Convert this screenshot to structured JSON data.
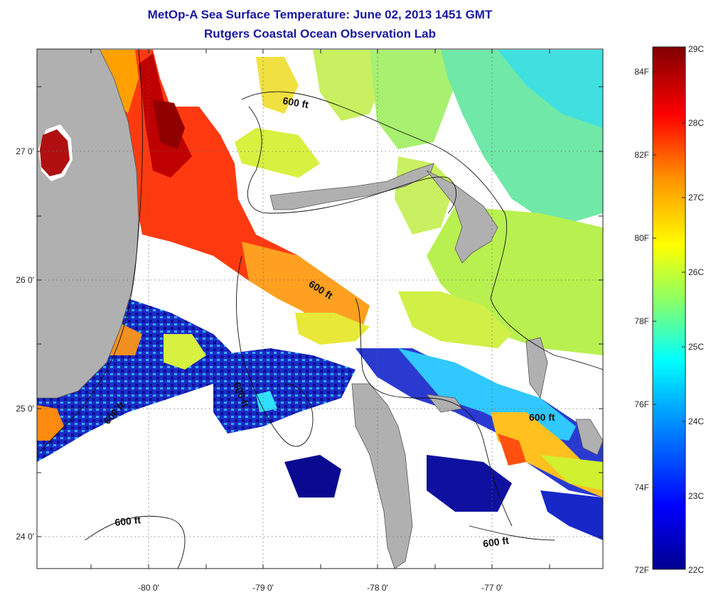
{
  "title": "MetOp-A Sea Surface Temperature:  June 02, 2013 1451 GMT",
  "subtitle": "Rutgers Coastal Ocean Observation Lab",
  "map": {
    "lat_labels": [
      "27 0'",
      "26 0'",
      "25 0'",
      "24 0'"
    ],
    "lon_labels": [
      "-80 0'",
      "-79 0'",
      "-78 0'",
      "-77 0'"
    ],
    "isobath_labels": [
      "600 ft",
      "600 ft",
      "600 ft",
      "600 ft",
      "600 ft",
      "600 ft"
    ],
    "land_color": "#b0b0b0",
    "grid": "dotted"
  },
  "colorbar": {
    "celsius_labels": [
      "29C",
      "28C",
      "27C",
      "26C",
      "25C",
      "24C",
      "23C",
      "22C"
    ],
    "fahrenheit_labels": [
      "84F",
      "82F",
      "80F",
      "78F",
      "76F",
      "74F",
      "72F"
    ],
    "colormap": "jet",
    "range_c": [
      22,
      29
    ]
  }
}
